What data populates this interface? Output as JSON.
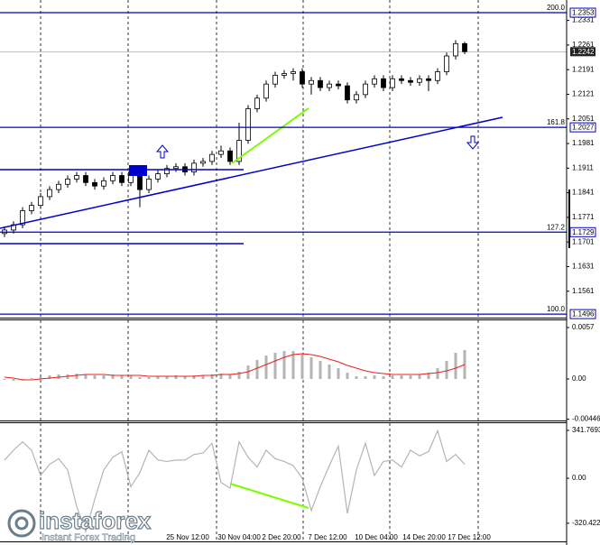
{
  "chart_data": [
    {
      "type": "candlestick",
      "ylim": [
        1.1486,
        1.2389
      ],
      "yticks": [
        1.2331,
        1.2261,
        1.2191,
        1.2121,
        1.2051,
        1.1981,
        1.1911,
        1.1841,
        1.1771,
        1.1701,
        1.1631,
        1.1561
      ],
      "levels": [
        {
          "price": 1.2353,
          "fib": "200.0"
        },
        {
          "price": 1.2027,
          "fib": "161.8"
        },
        {
          "price": 1.1729,
          "fib": "127.2"
        },
        {
          "price": 1.1496,
          "fib": "100.0"
        }
      ],
      "last": 1.2242,
      "candles": [
        [
          1.1725,
          1.1745,
          1.1715,
          1.1735
        ],
        [
          1.1735,
          1.176,
          1.1725,
          1.175
        ],
        [
          1.175,
          1.18,
          1.174,
          1.179
        ],
        [
          1.179,
          1.1815,
          1.178,
          1.1805
        ],
        [
          1.1805,
          1.184,
          1.1795,
          1.183
        ],
        [
          1.183,
          1.186,
          1.182,
          1.185
        ],
        [
          1.185,
          1.1875,
          1.184,
          1.1865
        ],
        [
          1.1865,
          1.189,
          1.1855,
          1.188
        ],
        [
          1.188,
          1.19,
          1.187,
          1.189
        ],
        [
          1.189,
          1.19,
          1.186,
          1.187
        ],
        [
          1.187,
          1.188,
          1.185,
          1.186
        ],
        [
          1.186,
          1.1885,
          1.185,
          1.1875
        ],
        [
          1.1875,
          1.19,
          1.1865,
          1.189
        ],
        [
          1.189,
          1.19,
          1.186,
          1.187
        ],
        [
          1.187,
          1.191,
          1.186,
          1.19
        ],
        [
          1.19,
          1.191,
          1.18,
          1.185
        ],
        [
          1.185,
          1.189,
          1.184,
          1.188
        ],
        [
          1.188,
          1.1905,
          1.187,
          1.1895
        ],
        [
          1.1895,
          1.192,
          1.1885,
          1.191
        ],
        [
          1.191,
          1.1925,
          1.19,
          1.1915
        ],
        [
          1.1915,
          1.1925,
          1.189,
          1.19
        ],
        [
          1.19,
          1.1935,
          1.189,
          1.1925
        ],
        [
          1.1925,
          1.194,
          1.1915,
          1.193
        ],
        [
          1.193,
          1.196,
          1.192,
          1.195
        ],
        [
          1.195,
          1.1975,
          1.194,
          1.196
        ],
        [
          1.196,
          1.197,
          1.192,
          1.193
        ],
        [
          1.193,
          1.204,
          1.192,
          1.199
        ],
        [
          1.199,
          1.209,
          1.198,
          1.208
        ],
        [
          1.208,
          1.212,
          1.207,
          1.211
        ],
        [
          1.211,
          1.216,
          1.21,
          1.215
        ],
        [
          1.215,
          1.2185,
          1.214,
          1.2175
        ],
        [
          1.2175,
          1.219,
          1.2165,
          1.218
        ],
        [
          1.218,
          1.2195,
          1.216,
          1.2185
        ],
        [
          1.2185,
          1.2195,
          1.214,
          1.215
        ],
        [
          1.215,
          1.217,
          1.212,
          1.216
        ],
        [
          1.216,
          1.217,
          1.213,
          1.214
        ],
        [
          1.214,
          1.216,
          1.213,
          1.215
        ],
        [
          1.215,
          1.216,
          1.2135,
          1.2145
        ],
        [
          1.2145,
          1.2155,
          1.2095,
          1.2105
        ],
        [
          1.2105,
          1.213,
          1.2095,
          1.212
        ],
        [
          1.212,
          1.216,
          1.211,
          1.215
        ],
        [
          1.215,
          1.2175,
          1.214,
          1.2165
        ],
        [
          1.2165,
          1.2175,
          1.213,
          1.214
        ],
        [
          1.214,
          1.2175,
          1.213,
          1.2165
        ],
        [
          1.2165,
          1.2175,
          1.215,
          1.216
        ],
        [
          1.216,
          1.217,
          1.2145,
          1.2155
        ],
        [
          1.2155,
          1.2175,
          1.2145,
          1.2165
        ],
        [
          1.2165,
          1.2175,
          1.213,
          1.216
        ],
        [
          1.216,
          1.2195,
          1.215,
          1.2185
        ],
        [
          1.2185,
          1.224,
          1.2175,
          1.223
        ],
        [
          1.223,
          1.2275,
          1.222,
          1.2265
        ],
        [
          1.2265,
          1.227,
          1.2235,
          1.2242
        ]
      ]
    },
    {
      "type": "macd",
      "ylim": [
        -0.0047,
        0.0065
      ],
      "yticks": [
        0.0057,
        {
          "value": 0,
          "label": "0.00"
        },
        -0.00446
      ],
      "histogram": {
        "color": "#b4b4b4",
        "values": [
          -0.0001,
          -0.0002,
          -0.0001,
          0.0001,
          0.0002,
          0.0004,
          0.0005,
          0.0005,
          0.0006,
          0.0005,
          0.0004,
          0.0004,
          0.0005,
          0.0004,
          0.0004,
          0.0002,
          0.0002,
          0.0003,
          0.0003,
          0.0004,
          0.0003,
          0.0004,
          0.0004,
          0.0005,
          0.0006,
          0.0005,
          0.0008,
          0.0015,
          0.0021,
          0.0026,
          0.0029,
          0.0031,
          0.0031,
          0.0027,
          0.0024,
          0.002,
          0.0016,
          0.0012,
          0.0007,
          0.0003,
          0.0003,
          0.0004,
          0.0003,
          0.0004,
          0.0004,
          0.0004,
          0.0005,
          0.0007,
          0.0012,
          0.002,
          0.0029,
          0.0032
        ]
      },
      "signal": {
        "color": "#e8201c",
        "values": [
          0.0002,
          0.0001,
          -0.0001,
          -0.0001,
          0,
          0.0001,
          0.0002,
          0.0003,
          0.0004,
          0.0005,
          0.0005,
          0.0005,
          0.0004,
          0.0004,
          0.0004,
          0.0004,
          0.0003,
          0.0003,
          0.0003,
          0.0003,
          0.0003,
          0.0003,
          0.0004,
          0.0004,
          0.0005,
          0.0005,
          0.0006,
          0.0008,
          0.0012,
          0.0016,
          0.002,
          0.0024,
          0.0027,
          0.0028,
          0.0027,
          0.0025,
          0.0022,
          0.0019,
          0.0015,
          0.0012,
          0.0009,
          0.0007,
          0.0006,
          0.0005,
          0.0005,
          0.0005,
          0.0005,
          0.0006,
          0.0007,
          0.0009,
          0.0012,
          0.0016
        ]
      }
    },
    {
      "type": "line",
      "ylim": [
        -450,
        393
      ],
      "yticks": [
        341.7693,
        {
          "value": 0,
          "label": "0.00"
        },
        -320.422
      ],
      "color": "#b4b4b4",
      "values": [
        130,
        200,
        260,
        200,
        20,
        100,
        140,
        60,
        -200,
        -380,
        -150,
        60,
        150,
        190,
        -60,
        40,
        200,
        130,
        120,
        130,
        130,
        170,
        180,
        250,
        -30,
        -70,
        260,
        150,
        80,
        200,
        140,
        120,
        90,
        0,
        -230,
        -60,
        90,
        230,
        -250,
        60,
        250,
        20,
        120,
        130,
        80,
        200,
        160,
        190,
        340,
        120,
        170,
        100
      ]
    }
  ],
  "time_axis": [
    "25 Nov 12:00",
    "30 Nov 04:00",
    "2 Dec 20:00",
    "7 Dec 12:00",
    "10 Dec 04:00",
    "14 Dec 20:00",
    "17 Dec 12:00"
  ],
  "logo": {
    "name": "instaforex",
    "tagline": "Instant Forex Trading"
  }
}
